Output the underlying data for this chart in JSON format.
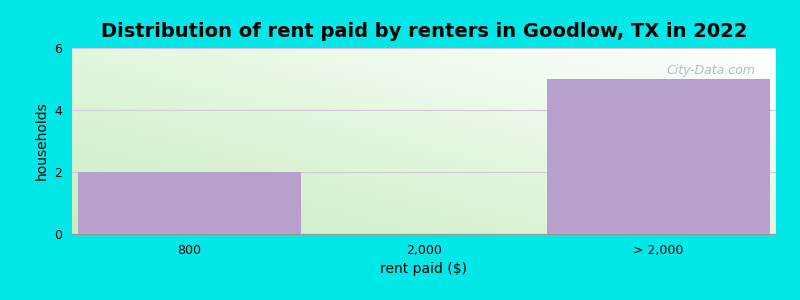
{
  "title": "Distribution of rent paid by renters in Goodlow, TX in 2022",
  "xlabel": "rent paid ($)",
  "ylabel": "households",
  "categories": [
    "800",
    "2,000",
    "> 2,000"
  ],
  "values": [
    2,
    0,
    5
  ],
  "bar_color": "#b8a0cc",
  "plot_bg_gradient_bottom": "#c8eec0",
  "plot_bg_gradient_top": "#f0faf0",
  "figure_bg_color": "#00e8e8",
  "ylim": [
    0,
    6
  ],
  "yticks": [
    0,
    2,
    4,
    6
  ],
  "title_fontsize": 14,
  "axis_label_fontsize": 10,
  "tick_fontsize": 9,
  "watermark": "City-Data.com",
  "gridline_color": "#d0c8d8"
}
